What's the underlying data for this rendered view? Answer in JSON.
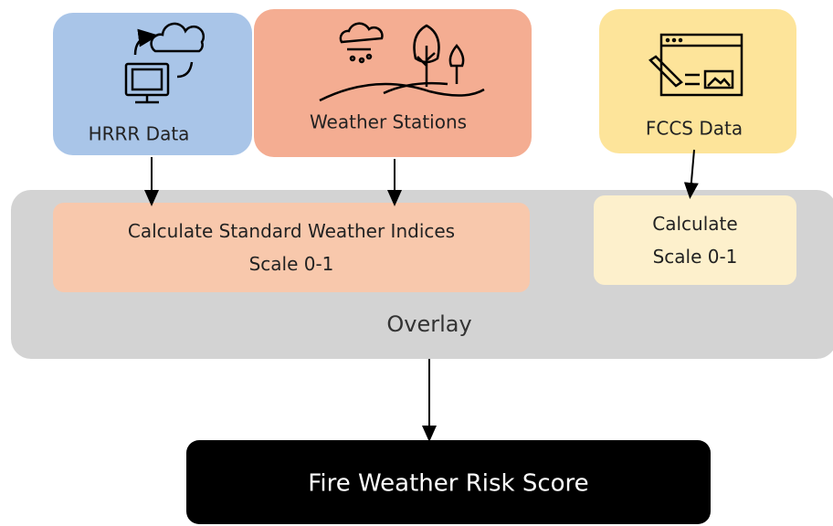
{
  "nodes": [
    {
      "label": "HRRR Data"
    },
    {
      "label": "Weather Stations"
    },
    {
      "label": "FCCS Data"
    },
    {
      "label": "Calculate Standard Weather Indices\nScale 0-1"
    },
    {
      "label": "Calculate\nScale 0-1"
    },
    {
      "label": "Overlay"
    },
    {
      "label": "Fire Weather Risk Score"
    }
  ]
}
